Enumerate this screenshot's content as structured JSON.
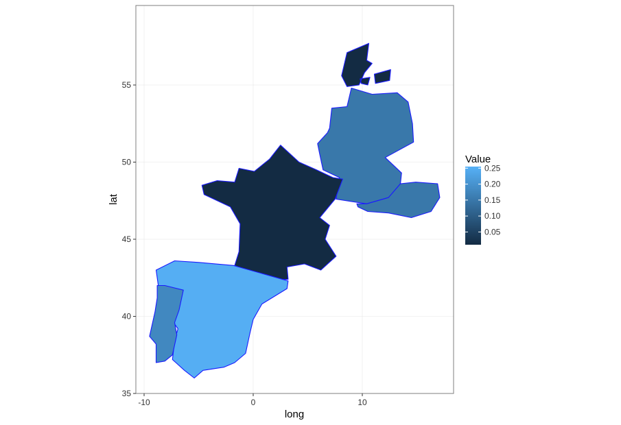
{
  "chart_data": {
    "type": "choropleth-map",
    "xlabel": "long",
    "ylabel": "lat",
    "xlim": [
      -10.5,
      18.5
    ],
    "ylim": [
      35,
      59.5
    ],
    "x_ticks": [
      -10,
      0,
      10
    ],
    "y_ticks": [
      35,
      40,
      45,
      50,
      55
    ],
    "grid": true,
    "border_color": "#1a1aff",
    "legend": {
      "title": "Value",
      "placement": "right",
      "ticks": [
        0.05,
        0.1,
        0.15,
        0.2,
        0.25
      ],
      "tick_labels": [
        "0.05",
        "0.10",
        "0.15",
        "0.20",
        "0.25"
      ],
      "range": [
        0.01,
        0.255
      ],
      "color_low": "#132b43",
      "color_high": "#56b1f7"
    },
    "regions": [
      {
        "name": "Denmark",
        "value": 0.01
      },
      {
        "name": "Germany",
        "value": 0.15
      },
      {
        "name": "Austria",
        "value": 0.15
      },
      {
        "name": "France",
        "value": 0.01
      },
      {
        "name": "Spain",
        "value": 0.25
      },
      {
        "name": "Portugal",
        "value": 0.18
      }
    ]
  }
}
